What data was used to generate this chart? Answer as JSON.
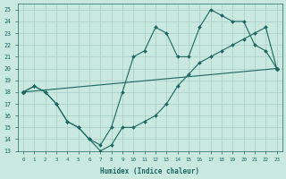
{
  "xlabel": "Humidex (Indice chaleur)",
  "bg_color": "#c8e8e0",
  "grid_color": "#a8ccc8",
  "line_color": "#1a6860",
  "xlim": [
    -0.5,
    23.5
  ],
  "ylim": [
    13,
    25.5
  ],
  "xticks": [
    0,
    1,
    2,
    3,
    4,
    5,
    6,
    7,
    8,
    9,
    10,
    11,
    12,
    13,
    14,
    15,
    16,
    17,
    18,
    19,
    20,
    21,
    22,
    23
  ],
  "yticks": [
    13,
    14,
    15,
    16,
    17,
    18,
    19,
    20,
    21,
    22,
    23,
    24,
    25
  ],
  "line1_x": [
    0,
    1,
    2,
    3,
    4,
    5,
    6,
    7,
    8,
    9,
    10,
    11,
    12,
    13,
    14,
    15,
    16,
    17,
    18,
    19,
    20,
    21,
    22,
    23
  ],
  "line1_y": [
    18,
    18.5,
    18,
    17,
    15.5,
    15,
    14,
    13.5,
    15,
    18,
    21,
    21.5,
    23.5,
    23,
    21,
    21,
    23.5,
    25,
    24.5,
    24,
    24,
    22,
    21.5,
    20
  ],
  "line2_x": [
    0,
    1,
    2,
    3,
    4,
    5,
    6,
    7,
    8,
    9,
    10,
    11,
    12,
    13,
    14,
    15,
    16,
    17,
    18,
    19,
    20,
    21,
    22,
    23
  ],
  "line2_y": [
    18,
    18.5,
    18,
    17,
    15.5,
    15,
    14,
    13,
    13.5,
    15,
    15,
    15.5,
    16,
    17,
    18.5,
    19.5,
    20.5,
    21,
    21.5,
    22,
    22.5,
    23,
    23.5,
    20
  ],
  "line3_x": [
    0,
    23
  ],
  "line3_y": [
    18,
    20
  ]
}
